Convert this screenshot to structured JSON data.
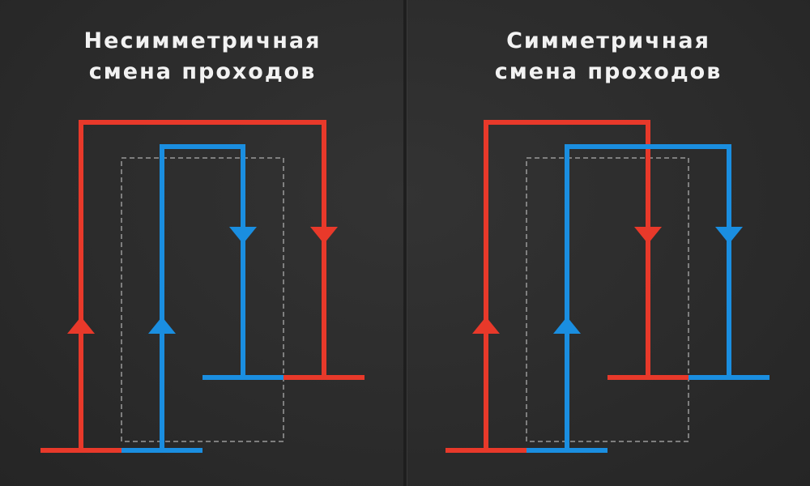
{
  "colors": {
    "hot": "#e8392a",
    "cold": "#1a8ee0",
    "guide": "#9a9a9a"
  },
  "panels": [
    {
      "title_line1": "Несимметричная",
      "title_line2": "смена проходов"
    },
    {
      "title_line1": "Симметричная",
      "title_line2": "смена проходов"
    }
  ]
}
